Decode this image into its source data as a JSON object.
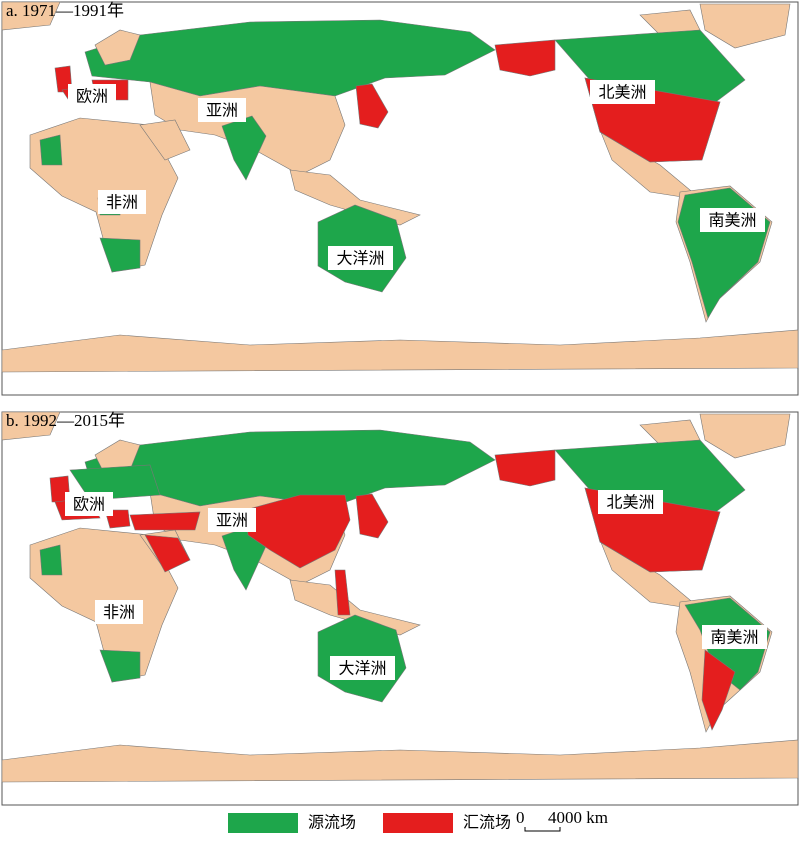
{
  "panels": [
    {
      "title": "a. 1971—1991年",
      "labels": [
        "欧洲",
        "亚洲",
        "非洲",
        "大洋洲",
        "北美洲",
        "南美洲"
      ]
    },
    {
      "title": "b. 1992—2015年",
      "labels": [
        "欧洲",
        "亚洲",
        "非洲",
        "大洋洲",
        "北美洲",
        "南美洲"
      ]
    }
  ],
  "legend": [
    {
      "label": "源流场",
      "color": "#1ea64b"
    },
    {
      "label": "汇流场",
      "color": "#e41e1e"
    }
  ],
  "scale": {
    "start": "0",
    "length": "4000 km"
  }
}
